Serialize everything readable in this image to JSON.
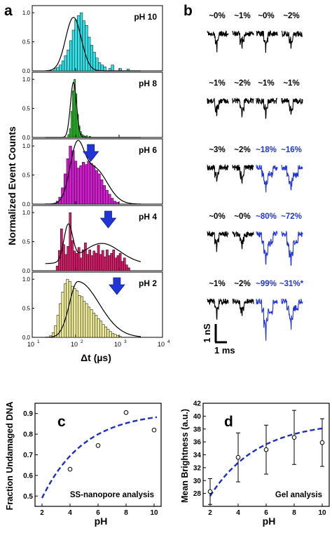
{
  "panel_labels": {
    "a": "a",
    "b": "b",
    "c": "c",
    "d": "d"
  },
  "colors": {
    "blue": "#2135d6",
    "line": "#000000",
    "dash": "#1c2fc2"
  },
  "panel_a": {
    "ylabel": "Normalized Event Counts",
    "xlabel": "Δt (µs)",
    "x_ticks": [
      {
        "v": 1,
        "label": "10",
        "exp": "1"
      },
      {
        "v": 2,
        "label": "10",
        "exp": "2"
      },
      {
        "v": 3,
        "label": "10",
        "exp": "3"
      },
      {
        "v": 4,
        "label": "10",
        "exp": "4"
      }
    ],
    "y_ticks": [
      "0.0",
      "0.5",
      "1.0"
    ],
    "scale": "log",
    "rows": [
      {
        "label": "pH 10",
        "color": "#2fe0e6",
        "arrow": null,
        "start": 1.5,
        "width": 0.06,
        "values": [
          0.04,
          0.06,
          0.1,
          0.17,
          0.26,
          0.36,
          0.52,
          0.7,
          0.88,
          0.95,
          1.0,
          0.86,
          0.78,
          0.58,
          0.44,
          0.32,
          0.22,
          0.14,
          0.1,
          0.07,
          0,
          0.04,
          0.1,
          0,
          0,
          0.04,
          0,
          0,
          0.03
        ],
        "fit": {
          "mu": 1.95,
          "sigma": 0.18,
          "amp": 0.92
        }
      },
      {
        "label": "pH 8",
        "color": "#33cc2e",
        "arrow": null,
        "start": 1.82,
        "width": 0.035,
        "values": [
          0.05,
          0.15,
          0.45,
          0.8,
          1.0,
          0.75,
          0.4,
          0.2,
          0.1,
          0.05,
          0.03,
          0.02,
          0.03,
          0,
          0.02
        ],
        "fit": {
          "mu": 1.95,
          "sigma": 0.07,
          "amp": 0.95
        }
      },
      {
        "label": "pH 6",
        "color": "#d41ad0",
        "arrow": 2.35,
        "start": 1.55,
        "width": 0.06,
        "values": [
          0.05,
          0.12,
          0.28,
          0.52,
          0.78,
          1.0,
          0.92,
          0.74,
          0.62,
          0.66,
          0.72,
          0.68,
          0.74,
          0.7,
          0.66,
          0.58,
          0.52,
          0.42,
          0.32,
          0.24,
          0.17,
          0.1,
          0.05,
          0.03
        ],
        "fit": "pH6"
      },
      {
        "label": "pH 4",
        "color": "#d91b6c",
        "arrow": 2.75,
        "start": 1.55,
        "width": 0.05,
        "values": [
          0.08,
          0.35,
          0.72,
          0.45,
          0.28,
          0.42,
          1.0,
          0.52,
          0.34,
          0.3,
          0.4,
          0.22,
          0.36,
          0.48,
          0.28,
          0.36,
          0.26,
          0.34,
          0.3,
          0.44,
          0.28,
          0.35,
          0.24,
          0.36,
          0.26,
          0.3,
          0.36,
          0.22,
          0.26,
          0.3,
          0.16,
          0.22,
          0.1,
          0.05
        ],
        "fit": "pH4"
      },
      {
        "label": "pH 2",
        "color": "#f0ee9a",
        "arrow": 2.95,
        "start": 1.4,
        "width": 0.055,
        "values": [
          0.03,
          0.08,
          0.2,
          0.38,
          0.58,
          0.78,
          0.92,
          1.0,
          0.96,
          0.88,
          0.84,
          0.8,
          0.72,
          0.7,
          0.62,
          0.58,
          0.52,
          0.48,
          0.42,
          0.38,
          0.32,
          0.28,
          0.22,
          0.18,
          0.14,
          0.1,
          0.07,
          0.05,
          0.03,
          0.02
        ],
        "fit": {
          "mu": 2.05,
          "sigma": 0.35,
          "amp": 0.96,
          "skew": true
        }
      }
    ]
  },
  "panel_b": {
    "rows": [
      [
        "~0%",
        "~1%",
        "~0%",
        "~2%"
      ],
      [
        "~1%",
        "~2%",
        "~1%",
        "~1%"
      ],
      [
        "~3%",
        "~2%",
        "~18%",
        "~16%"
      ],
      [
        "~0%",
        "~0%",
        "~80%",
        "~72%"
      ],
      [
        "~1%",
        "~2%",
        "~99%",
        "~31%*"
      ]
    ],
    "blue": [
      [
        false,
        false,
        false,
        false
      ],
      [
        false,
        false,
        false,
        false
      ],
      [
        false,
        false,
        true,
        true
      ],
      [
        false,
        false,
        true,
        true
      ],
      [
        false,
        false,
        true,
        true
      ]
    ],
    "scale_y": "1 nS",
    "scale_x": "1 ms"
  },
  "chart_data": [
    {
      "type": "scatter",
      "panel": "c",
      "ylabel": "Fraction Undamaged DNA",
      "xlabel": "pH",
      "annotation": "SS-nanopore analysis",
      "x": [
        4,
        6,
        8,
        10
      ],
      "y": [
        0.63,
        0.745,
        0.905,
        0.82
      ],
      "xlim": [
        1.5,
        10.5
      ],
      "ylim": [
        0.45,
        0.95
      ],
      "x_ticks": [
        2,
        4,
        6,
        8,
        10
      ],
      "y_ticks": [
        "0.5",
        "0.6",
        "0.7",
        "0.8",
        "0.9"
      ],
      "fit": "dashed saturating curve"
    },
    {
      "type": "scatter",
      "panel": "d",
      "ylabel": "Mean Brightness (a.u.)",
      "xlabel": "pH",
      "annotation": "Gel analysis",
      "x": [
        2,
        4,
        6,
        8,
        10
      ],
      "y": [
        28.3,
        33.6,
        34.8,
        36.7,
        35.9
      ],
      "error": [
        2.0,
        3.8,
        3.8,
        4.2,
        3.7
      ],
      "xlim": [
        1.5,
        10.5
      ],
      "ylim": [
        26,
        42
      ],
      "x_ticks": [
        2,
        4,
        6,
        8,
        10
      ],
      "y_ticks": [
        "28",
        "30",
        "32",
        "34",
        "36",
        "38",
        "40",
        "42"
      ],
      "fit": "dashed saturating curve"
    }
  ]
}
